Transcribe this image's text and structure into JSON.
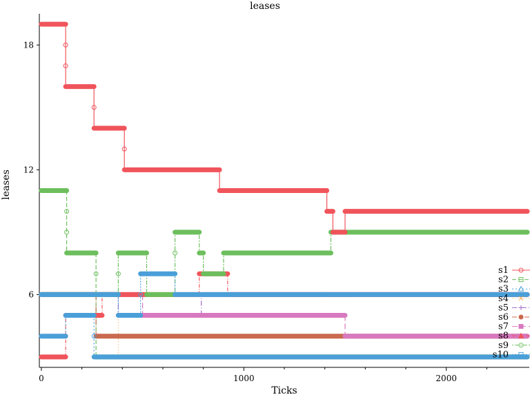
{
  "chart_data": {
    "type": "line",
    "title": "leases",
    "xlabel": "Ticks",
    "ylabel": "leases",
    "xlim": [
      -10,
      2410
    ],
    "ylim": [
      2.5,
      19.5
    ],
    "xticks": [
      0,
      1000,
      2000
    ],
    "xticklabels": [
      "0",
      "1000",
      "2000"
    ],
    "xminor": [
      200,
      400,
      600,
      800,
      1200,
      1400,
      1600,
      1800,
      2200
    ],
    "yticks": [
      6,
      12,
      18
    ],
    "yticklabels": [
      "6",
      "12",
      "18"
    ],
    "grid": false,
    "legend_position": "bottom-right",
    "series": [
      {
        "name": "s1",
        "color": "#f0545b",
        "dash": "",
        "marker": "circle-open",
        "x": [
          0,
          120,
          120,
          260,
          260,
          410,
          410,
          880,
          880,
          1410,
          1410,
          1440,
          1440,
          1500,
          1500,
          2400
        ],
        "y": [
          19,
          19,
          16,
          16,
          14,
          14,
          12,
          12,
          11,
          11,
          10,
          10,
          9,
          9,
          10,
          10
        ]
      },
      {
        "name": "s2",
        "color": "#6cbf5c",
        "dash": "6 3",
        "marker": "square-open",
        "x": [
          0,
          125,
          125,
          270,
          270,
          2400
        ],
        "y": [
          11,
          11,
          8,
          8,
          3,
          3
        ]
      },
      {
        "name": "s3",
        "color": "#4a9fd8",
        "dash": "2 3",
        "marker": "triangle-open",
        "x": [
          0,
          120,
          120,
          260,
          260,
          2400
        ],
        "y": [
          4,
          4,
          5,
          5,
          3,
          3
        ]
      },
      {
        "name": "s4",
        "color": "#f6a54c",
        "dash": "1 3",
        "marker": "x",
        "x": [
          0,
          380,
          380,
          2400
        ],
        "y": [
          6,
          6,
          3,
          3
        ]
      },
      {
        "name": "s5",
        "color": "#a069c4",
        "dash": "7 3 1 3",
        "marker": "plus",
        "x": [
          0,
          380,
          380,
          420,
          420,
          790,
          790,
          2400
        ],
        "y": [
          6,
          6,
          5,
          5,
          5,
          5,
          6,
          6
        ]
      },
      {
        "name": "s6",
        "color": "#c9694f",
        "dash": "7 3 1 3 1 3",
        "marker": "circle",
        "x": [
          0,
          270,
          270,
          2400
        ],
        "y": [
          6,
          6,
          4,
          4
        ]
      },
      {
        "name": "s7",
        "color": "#d879c0",
        "dash": "8 4",
        "marker": "square",
        "x": [
          0,
          500,
          500,
          1500,
          1500,
          2400
        ],
        "y": [
          6,
          6,
          5,
          5,
          4,
          4
        ]
      },
      {
        "name": "s8",
        "color": "#f0545b",
        "dash": "5 2 1 2",
        "marker": "triangle",
        "x": [
          0,
          120,
          120,
          300,
          300,
          500,
          500,
          650,
          650,
          780,
          780,
          920,
          920,
          2400
        ],
        "y": [
          3,
          3,
          5,
          5,
          6,
          6,
          6,
          6,
          6,
          6,
          7,
          7,
          6,
          6
        ]
      },
      {
        "name": "s9",
        "color": "#6cbf5c",
        "dash": "2 2 6 2",
        "marker": "circle-open",
        "x": [
          0,
          380,
          380,
          520,
          520,
          660,
          660,
          780,
          780,
          800,
          800,
          900,
          900,
          1430,
          1430,
          2400
        ],
        "y": [
          6,
          6,
          8,
          8,
          6,
          6,
          9,
          9,
          8,
          8,
          7,
          7,
          8,
          8,
          9,
          9
        ]
      },
      {
        "name": "s10",
        "color": "#4a9fd8",
        "dash": "2 2",
        "marker": "square-open",
        "x": [
          0,
          380,
          380,
          490,
          490,
          660,
          660,
          1400,
          1400,
          2400
        ],
        "y": [
          6,
          6,
          5,
          5,
          7,
          7,
          6,
          6,
          6,
          6
        ]
      }
    ]
  }
}
